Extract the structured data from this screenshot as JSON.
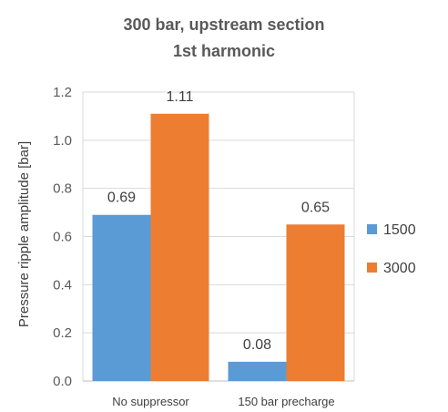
{
  "chart_data": {
    "type": "bar",
    "title_lines": [
      "300 bar, upstream section",
      "1st harmonic"
    ],
    "xlabel": "",
    "ylabel": "Pressure ripple amplitude [bar]",
    "categories": [
      "No suppressor",
      "150 bar precharge"
    ],
    "series": [
      {
        "name": "1500",
        "values": [
          0.69,
          0.08
        ],
        "labels": [
          "0.69",
          "0.08"
        ],
        "color": "#5b9bd5"
      },
      {
        "name": "3000",
        "values": [
          1.11,
          0.65
        ],
        "labels": [
          "1.11",
          "0.65"
        ],
        "color": "#ed7d31"
      }
    ],
    "ylim": [
      0,
      1.2
    ],
    "yticks": [
      "0.0",
      "0.2",
      "0.4",
      "0.6",
      "0.8",
      "1.0",
      "1.2"
    ],
    "grid": true,
    "legend_position": "right"
  }
}
